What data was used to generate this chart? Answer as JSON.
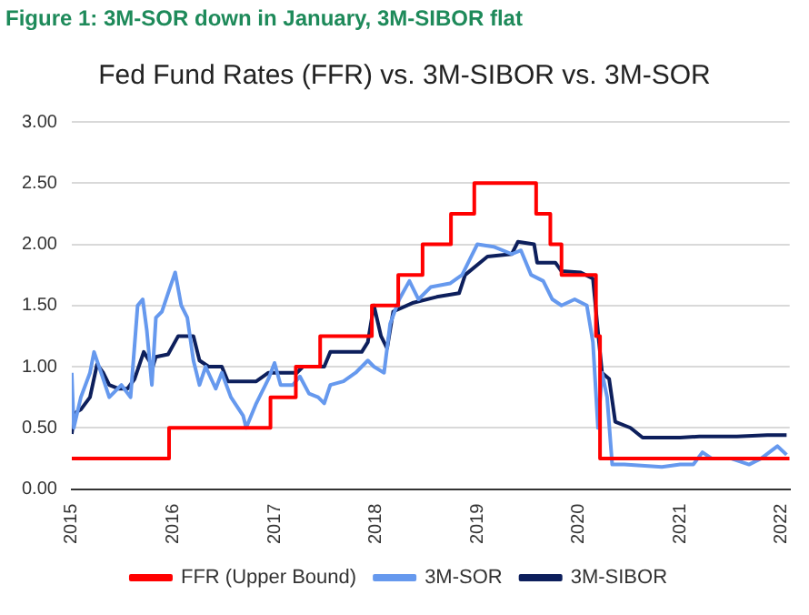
{
  "chart_data": {
    "type": "line",
    "title": "Figure 1: 3M-SOR down in January, 3M-SIBOR flat",
    "subtitle": "Fed Fund Rates (FFR) vs. 3M-SIBOR vs. 3M-SOR",
    "xlim": [
      2015,
      2022.08
    ],
    "xticks": [
      2015,
      2016,
      2017,
      2018,
      2019,
      2020,
      2021,
      2022
    ],
    "ylim": [
      0,
      3
    ],
    "yticks": [
      {
        "value": 0,
        "label": "0.00"
      },
      {
        "value": 0.5,
        "label": "0.50"
      },
      {
        "value": 1,
        "label": "1.00"
      },
      {
        "value": 1.5,
        "label": "1.50"
      },
      {
        "value": 2,
        "label": "2.00"
      },
      {
        "value": 2.5,
        "label": "2.50"
      },
      {
        "value": 3,
        "label": "3.00"
      }
    ],
    "grid": "y",
    "legend": "bottom",
    "marker": "none",
    "series": [
      {
        "name": "FFR (Upper Bound)",
        "type": "step",
        "color": "#ff0000",
        "x": [
          2015.0,
          2015.96,
          2016.96,
          2017.21,
          2017.45,
          2017.96,
          2018.22,
          2018.46,
          2018.74,
          2018.97,
          2019.58,
          2019.72,
          2019.83,
          2020.17,
          2020.21,
          2022.08
        ],
        "values": [
          0.25,
          0.5,
          0.75,
          1.0,
          1.25,
          1.5,
          1.75,
          2.0,
          2.25,
          2.5,
          2.25,
          2.0,
          1.75,
          1.25,
          0.25,
          0.25
        ]
      },
      {
        "name": "3M-SOR",
        "color": "#6699ee",
        "x": [
          2015.0,
          2015.02,
          2015.09,
          2015.18,
          2015.22,
          2015.31,
          2015.37,
          2015.49,
          2015.58,
          2015.65,
          2015.7,
          2015.74,
          2015.79,
          2015.83,
          2015.89,
          2015.95,
          2016.02,
          2016.08,
          2016.14,
          2016.2,
          2016.26,
          2016.32,
          2016.42,
          2016.48,
          2016.57,
          2016.69,
          2016.72,
          2016.82,
          2016.94,
          2017.0,
          2017.06,
          2017.18,
          2017.25,
          2017.34,
          2017.43,
          2017.49,
          2017.55,
          2017.68,
          2017.8,
          2017.92,
          2017.98,
          2018.08,
          2018.14,
          2018.23,
          2018.33,
          2018.42,
          2018.54,
          2018.73,
          2018.85,
          2018.94,
          2019.0,
          2019.16,
          2019.34,
          2019.43,
          2019.53,
          2019.65,
          2019.74,
          2019.83,
          2019.96,
          2020.08,
          2020.14,
          2020.19,
          2020.23,
          2020.28,
          2020.33,
          2020.45,
          2020.82,
          2021.0,
          2021.13,
          2021.22,
          2021.31,
          2021.5,
          2021.68,
          2021.8,
          2021.96,
          2022.05
        ],
        "values": [
          0.95,
          0.5,
          0.75,
          0.95,
          1.12,
          0.9,
          0.75,
          0.85,
          0.75,
          1.5,
          1.55,
          1.3,
          0.85,
          1.4,
          1.45,
          1.6,
          1.77,
          1.5,
          1.4,
          1.05,
          0.85,
          1.0,
          0.82,
          0.95,
          0.75,
          0.6,
          0.5,
          0.7,
          0.9,
          1.03,
          0.85,
          0.85,
          0.92,
          0.78,
          0.75,
          0.7,
          0.85,
          0.88,
          0.95,
          1.05,
          1.0,
          0.95,
          1.35,
          1.55,
          1.7,
          1.55,
          1.65,
          1.68,
          1.75,
          1.9,
          2.0,
          1.98,
          1.92,
          1.95,
          1.75,
          1.7,
          1.55,
          1.5,
          1.55,
          1.5,
          1.2,
          0.5,
          0.95,
          0.75,
          0.2,
          0.2,
          0.18,
          0.2,
          0.2,
          0.3,
          0.25,
          0.25,
          0.2,
          0.25,
          0.35,
          0.28
        ]
      },
      {
        "name": "3M-SIBOR",
        "color": "#0d1f5c",
        "x": [
          2015.0,
          2015.03,
          2015.09,
          2015.18,
          2015.25,
          2015.31,
          2015.37,
          2015.46,
          2015.55,
          2015.62,
          2015.71,
          2015.8,
          2015.83,
          2015.95,
          2016.05,
          2016.2,
          2016.26,
          2016.35,
          2016.48,
          2016.54,
          2016.82,
          2016.94,
          2017.12,
          2017.22,
          2017.28,
          2017.49,
          2017.55,
          2017.86,
          2017.92,
          2017.98,
          2018.05,
          2018.11,
          2018.17,
          2018.36,
          2018.6,
          2018.82,
          2018.88,
          2019.1,
          2019.34,
          2019.4,
          2019.56,
          2019.59,
          2019.77,
          2019.83,
          2020.02,
          2020.14,
          2020.2,
          2020.23,
          2020.3,
          2020.36,
          2020.51,
          2020.63,
          2021.0,
          2021.19,
          2021.56,
          2021.86,
          2022.05
        ],
        "values": [
          0.45,
          0.62,
          0.65,
          0.75,
          1.02,
          0.95,
          0.85,
          0.82,
          0.82,
          0.9,
          1.12,
          1.0,
          1.08,
          1.1,
          1.25,
          1.25,
          1.05,
          1.0,
          1.0,
          0.88,
          0.88,
          0.95,
          0.95,
          0.95,
          1.0,
          1.0,
          1.12,
          1.12,
          1.2,
          1.5,
          1.25,
          1.15,
          1.45,
          1.52,
          1.57,
          1.6,
          1.75,
          1.9,
          1.92,
          2.02,
          2.0,
          1.85,
          1.85,
          1.78,
          1.77,
          1.72,
          1.2,
          0.95,
          0.9,
          0.55,
          0.5,
          0.42,
          0.42,
          0.43,
          0.43,
          0.44,
          0.44
        ]
      }
    ]
  }
}
